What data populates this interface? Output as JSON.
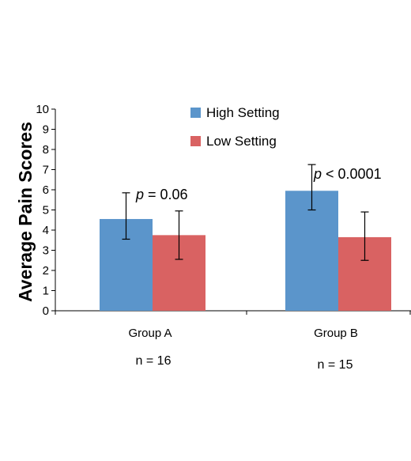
{
  "chart_data": {
    "type": "bar",
    "ylabel": "Average Pain Scores",
    "xlabel": "",
    "ylim": [
      0,
      10
    ],
    "yticks": [
      "0",
      "1",
      "2",
      "3",
      "4",
      "5",
      "6",
      "7",
      "8",
      "9",
      "10"
    ],
    "grid": false,
    "legend_position": "top-center",
    "categories": [
      "Group A",
      "Group B"
    ],
    "series": [
      {
        "name": "High Setting",
        "color": "#5b95cb",
        "values": [
          4.55,
          5.95
        ],
        "error_low": [
          3.55,
          5.0
        ],
        "error_high": [
          5.85,
          7.25
        ]
      },
      {
        "name": "Low Setting",
        "color": "#d96262",
        "values": [
          3.75,
          3.65
        ],
        "error_low": [
          2.55,
          2.5
        ],
        "error_high": [
          4.95,
          4.9
        ]
      }
    ],
    "annotations": [
      {
        "category": "Group A",
        "italic": "p",
        "text": " = 0.06"
      },
      {
        "category": "Group B",
        "italic": "p",
        "text": " < 0.0001"
      }
    ],
    "sample_sizes": [
      "n = 16",
      "n = 15"
    ]
  }
}
